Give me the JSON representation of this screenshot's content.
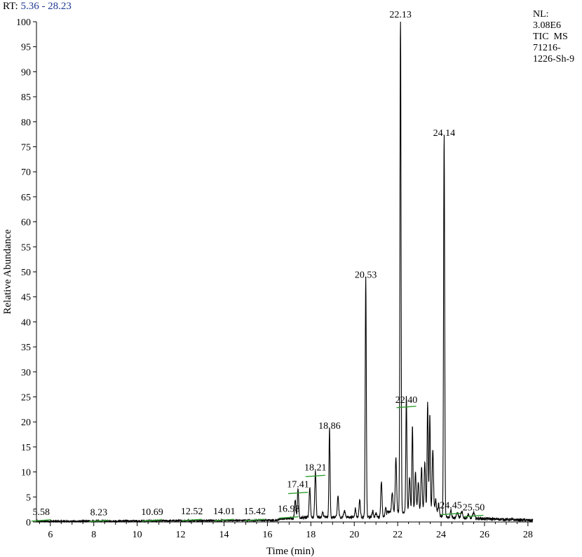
{
  "header": {
    "rt_prefix": "RT:",
    "rt_range": "5.36 - 28.23"
  },
  "info": {
    "nl_label": "NL:",
    "nl_value": "3.08E6",
    "scan": "TIC  MS",
    "sample_line1": "71216-",
    "sample_line2": "1226-Sh-9"
  },
  "colors": {
    "trace": "#000000",
    "marker": "#2e9e2e",
    "rt_range": "#1f3a93"
  },
  "chart_data": {
    "type": "line",
    "title": "",
    "xlabel": "Time (min)",
    "ylabel": "Relative Abundance",
    "xlim": [
      5.36,
      28.23
    ],
    "ylim": [
      0,
      100
    ],
    "xticks": [
      6,
      8,
      10,
      12,
      14,
      16,
      18,
      20,
      22,
      24,
      26,
      28
    ],
    "yticks": [
      0,
      5,
      10,
      15,
      20,
      25,
      30,
      35,
      40,
      45,
      50,
      55,
      60,
      65,
      70,
      75,
      80,
      85,
      90,
      95,
      100
    ],
    "grid": false,
    "legend": "none",
    "peak_labels": [
      {
        "rt": 5.58,
        "label": "5.58",
        "y": 0.3
      },
      {
        "rt": 8.23,
        "label": "8.23",
        "y": 0.2
      },
      {
        "rt": 10.69,
        "label": "10.69",
        "y": 0.3
      },
      {
        "rt": 12.52,
        "label": "12.52",
        "y": 0.4
      },
      {
        "rt": 14.01,
        "label": "14.01",
        "y": 0.4
      },
      {
        "rt": 15.42,
        "label": "15.42",
        "y": 0.4
      },
      {
        "rt": 16.98,
        "label": "16.98",
        "y": 0.9
      },
      {
        "rt": 17.41,
        "label": "17.41",
        "y": 5.8
      },
      {
        "rt": 18.21,
        "label": "18.21",
        "y": 9.2
      },
      {
        "rt": 18.86,
        "label": "18.86",
        "y": 17.8
      },
      {
        "rt": 20.53,
        "label": "20.53",
        "y": 48.0
      },
      {
        "rt": 22.13,
        "label": "22.13",
        "y": 100.0
      },
      {
        "rt": 22.4,
        "label": "22.40",
        "y": 23.0
      },
      {
        "rt": 24.14,
        "label": "24.14",
        "y": 76.3
      },
      {
        "rt": 24.45,
        "label": "24.45",
        "y": 1.6
      },
      {
        "rt": 25.5,
        "label": "25.50",
        "y": 1.2
      }
    ],
    "trace_peaks": [
      [
        17.28,
        3.8,
        0.03
      ],
      [
        17.41,
        5.8,
        0.03
      ],
      [
        17.95,
        6.0,
        0.03
      ],
      [
        18.21,
        9.2,
        0.03
      ],
      [
        18.55,
        1.0,
        0.03
      ],
      [
        18.86,
        17.8,
        0.025
      ],
      [
        19.25,
        4.3,
        0.03
      ],
      [
        19.55,
        1.2,
        0.04
      ],
      [
        20.05,
        1.7,
        0.03
      ],
      [
        20.25,
        3.5,
        0.03
      ],
      [
        20.53,
        48.0,
        0.025
      ],
      [
        20.85,
        1.2,
        0.03
      ],
      [
        21.0,
        0.8,
        0.03
      ],
      [
        21.25,
        7.2,
        0.03
      ],
      [
        21.45,
        1.8,
        0.03
      ],
      [
        21.75,
        4.0,
        0.03
      ],
      [
        21.92,
        11.0,
        0.03
      ],
      [
        22.13,
        100.0,
        0.025
      ],
      [
        22.4,
        23.0,
        0.025
      ],
      [
        22.55,
        7.0,
        0.03
      ],
      [
        22.68,
        17.2,
        0.025
      ],
      [
        22.82,
        8.0,
        0.03
      ],
      [
        22.95,
        6.0,
        0.03
      ],
      [
        23.1,
        9.0,
        0.03
      ],
      [
        23.25,
        10.0,
        0.03
      ],
      [
        23.38,
        22.0,
        0.025
      ],
      [
        23.48,
        19.8,
        0.025
      ],
      [
        23.62,
        12.5,
        0.03
      ],
      [
        23.75,
        2.5,
        0.03
      ],
      [
        23.9,
        2.0,
        0.03
      ],
      [
        24.14,
        76.3,
        0.025
      ],
      [
        24.45,
        1.6,
        0.03
      ],
      [
        24.75,
        1.0,
        0.04
      ],
      [
        24.95,
        1.2,
        0.04
      ],
      [
        25.25,
        0.8,
        0.04
      ],
      [
        25.5,
        1.2,
        0.04
      ]
    ]
  }
}
